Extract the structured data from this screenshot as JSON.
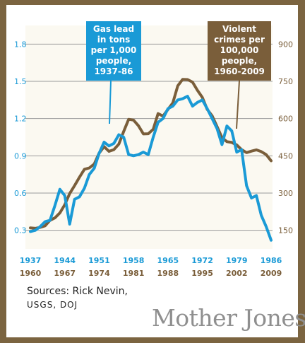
{
  "colors": {
    "frame": "#7b6440",
    "lead": "#1a9ad6",
    "crime": "#7a5e3a",
    "grid": "#9a9a9a",
    "background": "#fbf9f1"
  },
  "chart_data": {
    "type": "line",
    "grid": true,
    "lead_series": {
      "name": "Gas lead in tons per 1,000 people, 1937-86",
      "name_lines": [
        "Gas lead",
        "in tons",
        "per 1,000",
        "people,",
        "1937-86"
      ],
      "axis": "left",
      "x": [
        1937,
        1938,
        1939,
        1940,
        1941,
        1942,
        1943,
        1944,
        1945,
        1946,
        1947,
        1948,
        1949,
        1950,
        1951,
        1952,
        1953,
        1954,
        1955,
        1956,
        1957,
        1958,
        1959,
        1960,
        1961,
        1962,
        1963,
        1964,
        1965,
        1966,
        1967,
        1968,
        1969,
        1970,
        1971,
        1972,
        1973,
        1974,
        1975,
        1976,
        1977,
        1978,
        1979,
        1980,
        1981,
        1982,
        1983,
        1984,
        1985,
        1986
      ],
      "values": [
        0.29,
        0.3,
        0.33,
        0.37,
        0.38,
        0.5,
        0.63,
        0.58,
        0.35,
        0.55,
        0.57,
        0.64,
        0.75,
        0.8,
        0.92,
        1.01,
        0.98,
        1.0,
        1.07,
        1.05,
        0.91,
        0.9,
        0.91,
        0.93,
        0.91,
        1.05,
        1.17,
        1.2,
        1.28,
        1.3,
        1.35,
        1.36,
        1.38,
        1.3,
        1.33,
        1.35,
        1.28,
        1.2,
        1.12,
        0.99,
        1.14,
        1.1,
        0.93,
        0.95,
        0.66,
        0.56,
        0.58,
        0.42,
        0.33,
        0.22
      ]
    },
    "crime_series": {
      "name": "Violent crimes per 100,000 people, 1960-2009",
      "name_lines": [
        "Violent",
        "crimes per",
        "100,000",
        "people,",
        "1960-2009"
      ],
      "axis": "right",
      "x": [
        1960,
        1961,
        1962,
        1963,
        1964,
        1965,
        1966,
        1967,
        1968,
        1969,
        1970,
        1971,
        1972,
        1973,
        1974,
        1975,
        1976,
        1977,
        1978,
        1979,
        1980,
        1981,
        1982,
        1983,
        1984,
        1985,
        1986,
        1987,
        1988,
        1989,
        1990,
        1991,
        1992,
        1993,
        1994,
        1995,
        1996,
        1997,
        1998,
        1999,
        2000,
        2001,
        2002,
        2003,
        2004,
        2005,
        2006,
        2007,
        2008,
        2009
      ],
      "values": [
        160,
        158,
        162,
        168,
        190,
        200,
        220,
        253,
        298,
        330,
        364,
        396,
        401,
        417,
        461,
        487,
        468,
        475,
        497,
        548,
        597,
        594,
        571,
        538,
        539,
        557,
        620,
        610,
        637,
        663,
        732,
        758,
        757,
        747,
        714,
        685,
        637,
        611,
        568,
        523,
        507,
        504,
        494,
        475,
        463,
        469,
        474,
        467,
        455,
        430
      ]
    },
    "left_axis": {
      "ticks": [
        "0.3",
        "0.6",
        "0.9",
        "1.2",
        "1.5",
        "1.8"
      ],
      "ylim": [
        0.15,
        1.95
      ]
    },
    "right_axis": {
      "ticks": [
        "150",
        "300",
        "450",
        "600",
        "750",
        "900"
      ],
      "ylim": [
        75,
        975
      ]
    },
    "x_axis": {
      "lead_years": [
        "1937",
        "1944",
        "1951",
        "1958",
        "1965",
        "1972",
        "1979",
        "1986"
      ],
      "crime_years": [
        "1960",
        "1967",
        "1974",
        "1981",
        "1988",
        "1995",
        "2002",
        "2009"
      ]
    }
  },
  "sources": {
    "line1": "Sources: Rick Nevin,",
    "line2": "USGS, DOJ"
  },
  "brand": "Mother Jones"
}
